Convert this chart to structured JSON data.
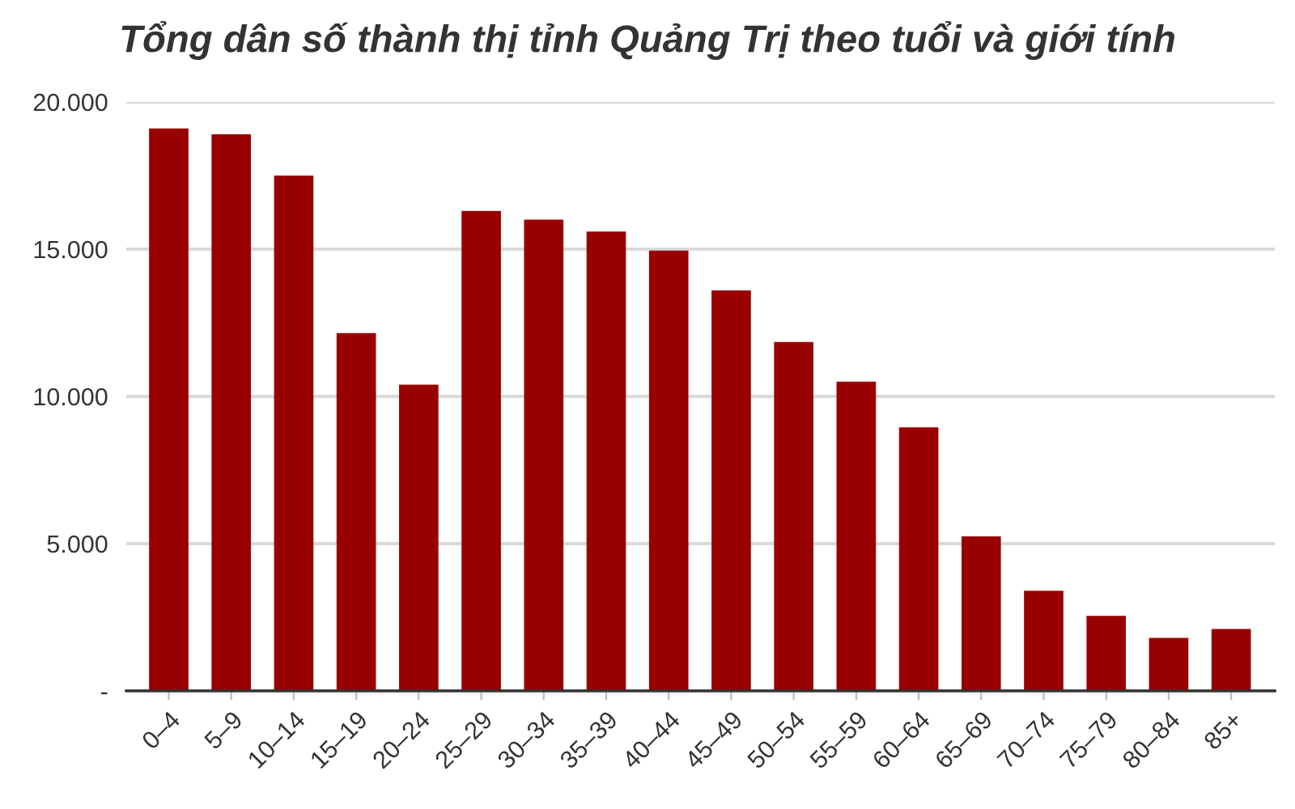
{
  "chart_data": {
    "type": "bar",
    "title": "Tổng dân số thành thị tỉnh Quảng Trị theo tuổi và giới tính",
    "categories": [
      "0–4",
      "5–9",
      "10–14",
      "15–19",
      "20–24",
      "25–29",
      "30–34",
      "35–39",
      "40–44",
      "45–49",
      "50–54",
      "55–59",
      "60–64",
      "65–69",
      "70–74",
      "75–79",
      "80–84",
      "85+"
    ],
    "values": [
      19100,
      18900,
      17500,
      12150,
      10400,
      16300,
      16000,
      15600,
      14950,
      13600,
      11850,
      10500,
      8950,
      5250,
      3400,
      2550,
      1800,
      2100
    ],
    "color": "#990000",
    "ylim": [
      0,
      20000
    ],
    "yticks": [
      {
        "value": 0,
        "label": "-"
      },
      {
        "value": 5000,
        "label": "5.000"
      },
      {
        "value": 10000,
        "label": "10.000"
      },
      {
        "value": 15000,
        "label": "15.000"
      },
      {
        "value": 20000,
        "label": "20.000"
      }
    ],
    "grid": "y"
  }
}
